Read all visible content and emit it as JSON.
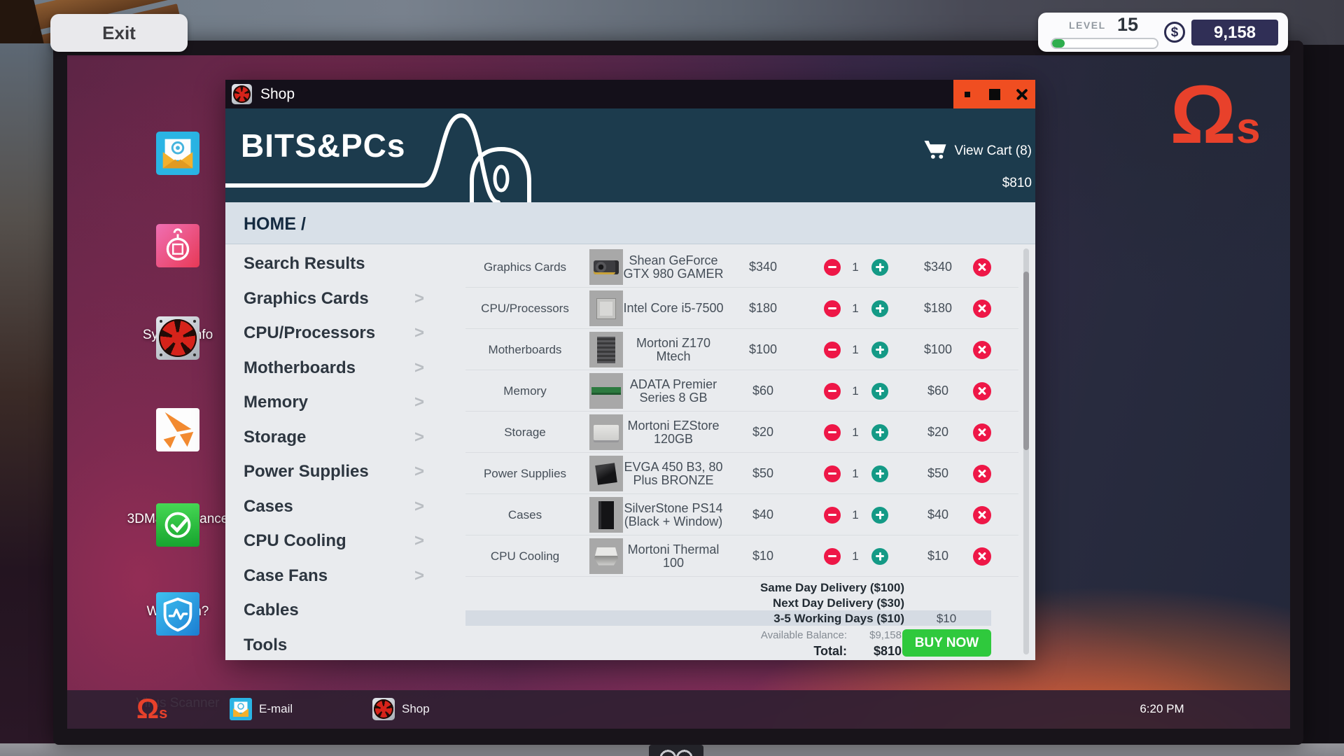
{
  "hud": {
    "exit_label": "Exit",
    "level_label": "LEVEL",
    "level_value": "15",
    "level_progress_pct": 12,
    "currency_symbol": "$",
    "balance": "9,158",
    "accent_color": "#e8412b",
    "progress_color": "#2fae4e"
  },
  "window": {
    "title": "Shop",
    "controls_color": "#f04e21"
  },
  "shop": {
    "brand": "BITS&PCs",
    "header_color": "#1c3b4d",
    "view_cart_label": "View Cart (8)",
    "cart_total_header": "$810",
    "breadcrumb": "HOME /",
    "sidebar": [
      {
        "label": "Search Results",
        "has_chevron": false
      },
      {
        "label": "Graphics Cards",
        "has_chevron": true
      },
      {
        "label": "CPU/Processors",
        "has_chevron": true
      },
      {
        "label": "Motherboards",
        "has_chevron": true
      },
      {
        "label": "Memory",
        "has_chevron": true
      },
      {
        "label": "Storage",
        "has_chevron": true
      },
      {
        "label": "Power Supplies",
        "has_chevron": true
      },
      {
        "label": "Cases",
        "has_chevron": true
      },
      {
        "label": "CPU Cooling",
        "has_chevron": true
      },
      {
        "label": "Case Fans",
        "has_chevron": true
      },
      {
        "label": "Cables",
        "has_chevron": false
      },
      {
        "label": "Tools",
        "has_chevron": false
      }
    ],
    "cart_items": [
      {
        "category": "Graphics Cards",
        "thumb": "gpu",
        "name": "Shean GeForce GTX 980 GAMER",
        "unit_price": "$340",
        "qty": "1",
        "total": "$340"
      },
      {
        "category": "CPU/Processors",
        "thumb": "cpu",
        "name": "Intel Core i5-7500",
        "unit_price": "$180",
        "qty": "1",
        "total": "$180"
      },
      {
        "category": "Motherboards",
        "thumb": "motherboard",
        "name": "Mortoni Z170 Mtech",
        "unit_price": "$100",
        "qty": "1",
        "total": "$100"
      },
      {
        "category": "Memory",
        "thumb": "ram",
        "name": "ADATA Premier Series 8 GB",
        "unit_price": "$60",
        "qty": "1",
        "total": "$60"
      },
      {
        "category": "Storage",
        "thumb": "hdd",
        "name": "Mortoni EZStore 120GB",
        "unit_price": "$20",
        "qty": "1",
        "total": "$20"
      },
      {
        "category": "Power Supplies",
        "thumb": "psu",
        "name": "EVGA 450 B3, 80 Plus BRONZE",
        "unit_price": "$50",
        "qty": "1",
        "total": "$50"
      },
      {
        "category": "Cases",
        "thumb": "case",
        "name": "SilverStone PS14 (Black + Window)",
        "unit_price": "$40",
        "qty": "1",
        "total": "$40"
      },
      {
        "category": "CPU Cooling",
        "thumb": "cooler",
        "name": "Mortoni Thermal 100",
        "unit_price": "$10",
        "qty": "1",
        "total": "$10"
      }
    ],
    "delivery_options": [
      {
        "label": "Same Day Delivery ($100)",
        "price": "",
        "selected": false
      },
      {
        "label": "Next Day Delivery ($30)",
        "price": "",
        "selected": false
      },
      {
        "label": "3-5 Working Days ($10)",
        "price": "$10",
        "selected": true
      }
    ],
    "summary": {
      "available_balance_label": "Available Balance:",
      "available_balance": "$9,158",
      "total_label": "Total:",
      "total": "$810",
      "buy_label": "BUY NOW"
    }
  },
  "desktop": {
    "logo": {
      "omega": "Ω",
      "suffix": "s"
    },
    "icons": [
      {
        "icon": "email-icon",
        "label": "E-mail"
      },
      {
        "icon": "system-info-icon",
        "label": "System Info"
      },
      {
        "icon": "shop-fan-icon",
        "label": "Shop"
      },
      {
        "icon": "3dmark-icon",
        "label": "3DMark Advance Edition"
      },
      {
        "icon": "will-it-run-icon",
        "label": "Will it run?"
      },
      {
        "icon": "virus-scanner-icon",
        "label": "Virus Scanner"
      }
    ]
  },
  "taskbar": {
    "logo": {
      "omega": "Ω",
      "suffix": "s"
    },
    "apps": [
      {
        "icon": "email-icon",
        "label": "E-mail"
      },
      {
        "icon": "shop-fan-icon",
        "label": "Shop"
      }
    ],
    "clock": "6:20 PM"
  }
}
